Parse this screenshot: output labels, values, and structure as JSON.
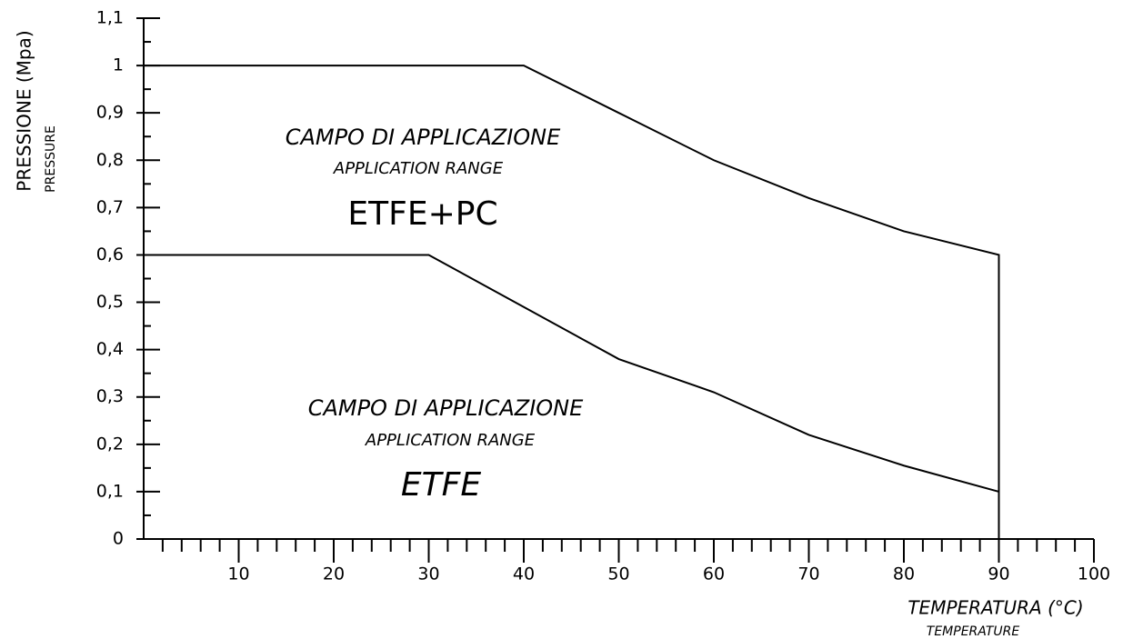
{
  "chart_data": {
    "type": "line",
    "ylabel": "PRESSIONE (Mpa)",
    "ylabel_sub": "PRESSURE",
    "xlabel": "TEMPERATURA (°C)",
    "xlabel_sub": "TEMPERATURE",
    "annotations": [
      "CAMPO DI APPLICAZIONE",
      "APPLICATION RANGE",
      "CAMPO DI APPLICAZIONE",
      "APPLICATION RANGE"
    ],
    "series": [
      {
        "name": "ETFE+PC",
        "color": "#000000",
        "x": [
          0,
          40,
          50,
          60,
          70,
          80,
          90,
          90
        ],
        "values": [
          1,
          1,
          0.9,
          0.8,
          0.72,
          0.65,
          0.6,
          0
        ]
      },
      {
        "name": "ETFE",
        "color": "#000000",
        "x": [
          0,
          30,
          40,
          50,
          60,
          70,
          80,
          90
        ],
        "values": [
          0.6,
          0.6,
          0.49,
          0.38,
          0.31,
          0.22,
          0.155,
          0.1
        ]
      }
    ],
    "xlim": [
      0,
      100
    ],
    "xticks": [
      10,
      20,
      30,
      40,
      50,
      60,
      70,
      80,
      90,
      100
    ],
    "ylim": [
      0,
      1.1
    ],
    "yticks": [
      0,
      {
        "value": 0.1,
        "label": "0,1"
      },
      {
        "value": 0.2,
        "label": "0,2"
      },
      {
        "value": 0.3,
        "label": "0,3"
      },
      {
        "value": 0.4,
        "label": "0,4"
      },
      {
        "value": 0.5,
        "label": "0,5"
      },
      {
        "value": 0.6,
        "label": "0,6"
      },
      {
        "value": 0.7,
        "label": "0,7"
      },
      {
        "value": 0.8,
        "label": "0,8"
      },
      {
        "value": 0.9,
        "label": "0,9"
      },
      1,
      {
        "value": 1.1,
        "label": "1,1"
      }
    ]
  }
}
